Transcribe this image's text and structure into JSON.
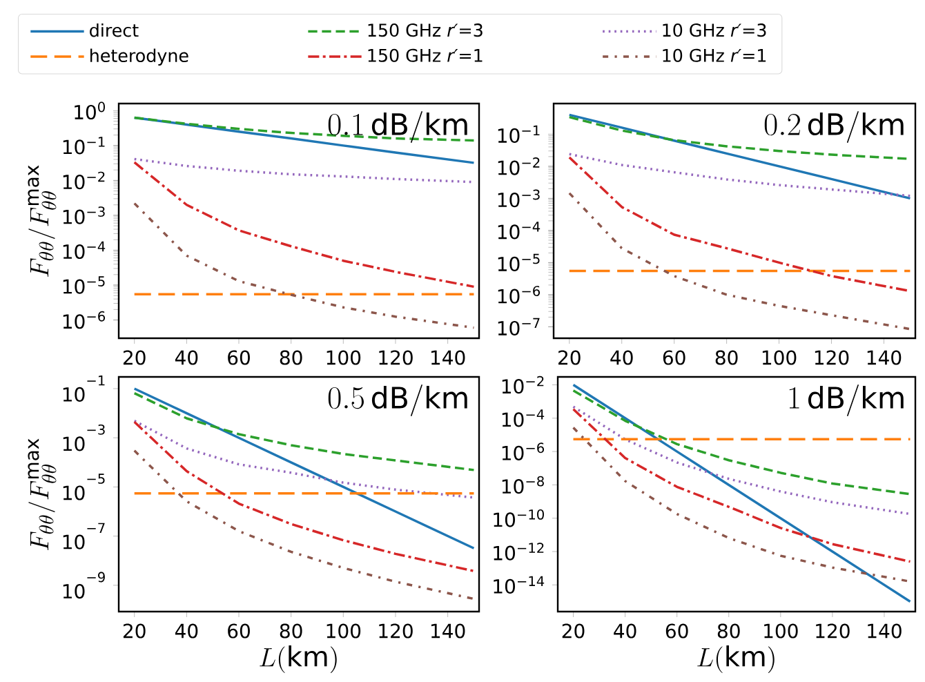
{
  "chart_data": [
    {
      "type": "line",
      "ylabel": "F_{\\theta\\theta}/F_{\\theta\\theta}^{\\max}",
      "annotations": [
        "0.1\\,\\mathrm{dB/km}"
      ],
      "legend": "top",
      "x": [
        20,
        40,
        60,
        80,
        100,
        120,
        150
      ],
      "xlim": [
        14,
        152
      ],
      "xticks": [
        20,
        40,
        60,
        80,
        100,
        120,
        140
      ],
      "log": "y",
      "ylim": [
        3e-07,
        1.6
      ],
      "yticks": [
        {
          "value": 1e-06,
          "label": "10$^{−6}$"
        },
        {
          "value": 1e-05,
          "label": "10$^{−5}$"
        },
        {
          "value": 0.0001,
          "label": "10$^{−4}$"
        },
        {
          "value": 0.001,
          "label": "10$^{−3}$"
        },
        {
          "value": 0.01,
          "label": "10$^{−2}$"
        },
        {
          "value": 0.1,
          "label": "10$^{−1}$"
        },
        {
          "value": 1,
          "label": "10$^{0}$"
        }
      ],
      "series": [
        {
          "name": "direct",
          "color": "#1f77b4",
          "line_style": "solid",
          "values": [
            0.63,
            0.4,
            0.25,
            0.16,
            0.1,
            0.063,
            0.032
          ]
        },
        {
          "name": "150 GHz *r′*=3",
          "color": "#2ca02c",
          "line_style": "dashed",
          "values": [
            0.63,
            0.42,
            0.3,
            0.23,
            0.19,
            0.16,
            0.14
          ]
        },
        {
          "name": "10 GHz *r′*=3",
          "color": "#9467bd",
          "line_style": "dotted",
          "values": [
            0.041,
            0.026,
            0.019,
            0.015,
            0.013,
            0.011,
            0.009
          ]
        },
        {
          "name": "heterodyne",
          "color": "#ff7f0e",
          "line_style": "long dashed",
          "values": [
            5.5e-06,
            5.5e-06,
            5.5e-06,
            5.5e-06,
            5.5e-06,
            5.5e-06,
            5.5e-06
          ]
        },
        {
          "name": "150 GHz *r′*=1",
          "color": "#d62728",
          "line_style": "dashdot",
          "values": [
            0.033,
            0.002,
            0.00037,
            0.00013,
            5e-05,
            2.4e-05,
            9e-06
          ]
        },
        {
          "name": "10 GHz *r′*=1",
          "color": "#8c564b",
          "line_style": "dashdotdot",
          "values": [
            0.0022,
            7e-05,
            1.3e-05,
            5.3e-06,
            2.3e-06,
            1.25e-06,
            6e-07
          ]
        }
      ]
    },
    {
      "type": "line",
      "annotations": [
        "0.2\\,\\mathrm{dB/km}"
      ],
      "x": [
        20,
        40,
        60,
        80,
        100,
        120,
        150
      ],
      "xlim": [
        14,
        152
      ],
      "xticks": [
        20,
        40,
        60,
        80,
        100,
        120,
        140
      ],
      "log": "y",
      "ylim": [
        4.4e-08,
        0.9
      ],
      "yticks": [
        {
          "value": 1e-07,
          "label": "10$^{−7}$"
        },
        {
          "value": 1e-06,
          "label": "10$^{−6}$"
        },
        {
          "value": 1e-05,
          "label": "10$^{−5}$"
        },
        {
          "value": 0.0001,
          "label": "10$^{−4}$"
        },
        {
          "value": 0.001,
          "label": "10$^{−3}$"
        },
        {
          "value": 0.01,
          "label": "10$^{−2}$"
        },
        {
          "value": 0.1,
          "label": "10$^{−1}$"
        }
      ],
      "series": [
        {
          "color": "#1f77b4",
          "line_style": "solid",
          "values": [
            0.4,
            0.16,
            0.063,
            0.025,
            0.01,
            0.004,
            0.001
          ]
        },
        {
          "color": "#2ca02c",
          "line_style": "dashed",
          "values": [
            0.34,
            0.13,
            0.065,
            0.042,
            0.03,
            0.023,
            0.017
          ]
        },
        {
          "color": "#9467bd",
          "line_style": "dotted",
          "values": [
            0.024,
            0.011,
            0.0065,
            0.0039,
            0.0026,
            0.0019,
            0.0012
          ]
        },
        {
          "color": "#ff7f0e",
          "line_style": "long dashed",
          "values": [
            5.5e-06,
            5.5e-06,
            5.5e-06,
            5.5e-06,
            5.5e-06,
            5.5e-06,
            5.5e-06
          ]
        },
        {
          "color": "#d62728",
          "line_style": "dashdot",
          "values": [
            0.019,
            0.00054,
            7.4e-05,
            2.8e-05,
            1e-05,
            3.8e-06,
            1.3e-06
          ]
        },
        {
          "color": "#8c564b",
          "line_style": "dashdotdot",
          "values": [
            0.00145,
            2.8e-05,
            3.8e-06,
            1e-06,
            4.5e-07,
            2.3e-07,
            8.5e-08
          ]
        }
      ]
    },
    {
      "type": "line",
      "ylabel": "F_{\\theta\\theta}/F_{\\theta\\theta}^{\\max}",
      "xlabel": "L(\\mathrm{km})",
      "annotations": [
        "0.5\\,\\mathrm{dB/km}"
      ],
      "x": [
        20,
        40,
        60,
        80,
        100,
        120,
        150
      ],
      "xlim": [
        14,
        152
      ],
      "xticks": [
        20,
        40,
        60,
        80,
        100,
        120,
        140
      ],
      "log": "y",
      "ylim": [
        8.5e-11,
        0.3
      ],
      "yticks": [
        {
          "value": 1e-09,
          "label": "10$^{−9}$"
        },
        {
          "value": 1e-07,
          "label": "10$^{−7}$"
        },
        {
          "value": 1e-05,
          "label": "10$^{−5}$"
        },
        {
          "value": 0.001,
          "label": "10$^{−3}$"
        },
        {
          "value": 0.1,
          "label": "10$^{−1}$"
        }
      ],
      "series": [
        {
          "color": "#1f77b4",
          "line_style": "solid",
          "values": [
            0.1,
            0.01,
            0.001,
            0.0001,
            1e-05,
            1e-06,
            3.2e-08
          ]
        },
        {
          "color": "#2ca02c",
          "line_style": "dashed",
          "values": [
            0.065,
            0.0062,
            0.0014,
            0.0005,
            0.00022,
            0.00012,
            4.9e-05
          ]
        },
        {
          "color": "#9467bd",
          "line_style": "dotted",
          "values": [
            0.0049,
            0.00037,
            8.3e-05,
            3.8e-05,
            1.5e-05,
            7.8e-06,
            3.7e-06
          ]
        },
        {
          "color": "#ff7f0e",
          "line_style": "long dashed",
          "values": [
            5.5e-06,
            5.5e-06,
            5.5e-06,
            5.5e-06,
            5.5e-06,
            5.5e-06,
            5.5e-06
          ]
        },
        {
          "color": "#d62728",
          "line_style": "dashdot",
          "values": [
            0.0044,
            4.4e-05,
            2.1e-06,
            3.1e-07,
            6.8e-08,
            1.9e-08,
            3.8e-09
          ]
        },
        {
          "color": "#8c564b",
          "line_style": "dashdotdot",
          "values": [
            0.0003,
            2.6e-06,
            1.6e-07,
            2.3e-08,
            5.1e-09,
            1.4e-09,
            2.8e-10
          ]
        }
      ]
    },
    {
      "type": "line",
      "xlabel": "L(\\mathrm{km})",
      "annotations": [
        "1\\,\\mathrm{dB/km}"
      ],
      "x": [
        20,
        40,
        60,
        80,
        100,
        120,
        150
      ],
      "xlim": [
        14,
        152
      ],
      "xticks": [
        20,
        40,
        60,
        80,
        100,
        120,
        140
      ],
      "log": "y",
      "ylim": [
        2.5e-16,
        0.03
      ],
      "yticks": [
        {
          "value": 1e-14,
          "label": "10$^{−14}$"
        },
        {
          "value": 1e-12,
          "label": "10$^{−12}$"
        },
        {
          "value": 1e-10,
          "label": "10$^{−10}$"
        },
        {
          "value": 1e-08,
          "label": "10$^{−8}$"
        },
        {
          "value": 1e-06,
          "label": "10$^{−6}$"
        },
        {
          "value": 0.0001,
          "label": "10$^{−4}$"
        },
        {
          "value": 0.01,
          "label": "10$^{−2}$"
        }
      ],
      "series": [
        {
          "color": "#1f77b4",
          "line_style": "solid",
          "values": [
            0.01,
            0.0001,
            1e-06,
            1e-08,
            1e-10,
            1e-12,
            1e-15
          ]
        },
        {
          "color": "#2ca02c",
          "line_style": "dashed",
          "values": [
            0.0046,
            7e-05,
            2.8e-06,
            3e-07,
            5.3e-08,
            1.2e-08,
            2.8e-09
          ]
        },
        {
          "color": "#9467bd",
          "line_style": "dotted",
          "values": [
            0.00049,
            5.4e-06,
            2.2e-07,
            2.3e-08,
            4e-09,
            9.1e-10,
            1.8e-10
          ]
        },
        {
          "color": "#ff7f0e",
          "line_style": "long dashed",
          "values": [
            5.5e-06,
            5.5e-06,
            5.5e-06,
            5.5e-06,
            5.5e-06,
            5.5e-06,
            5.5e-06
          ]
        },
        {
          "color": "#d62728",
          "line_style": "dashdot",
          "values": [
            0.00035,
            4.1e-07,
            7.6e-09,
            4.8e-10,
            2.6e-11,
            2.8e-12,
            2.5e-13
          ]
        },
        {
          "color": "#8c564b",
          "line_style": "dashdotdot",
          "values": [
            2.7e-05,
            1.7e-08,
            1.8e-10,
            6.5e-12,
            5.6e-13,
            1.1e-13,
            1.6e-14
          ]
        }
      ]
    }
  ]
}
